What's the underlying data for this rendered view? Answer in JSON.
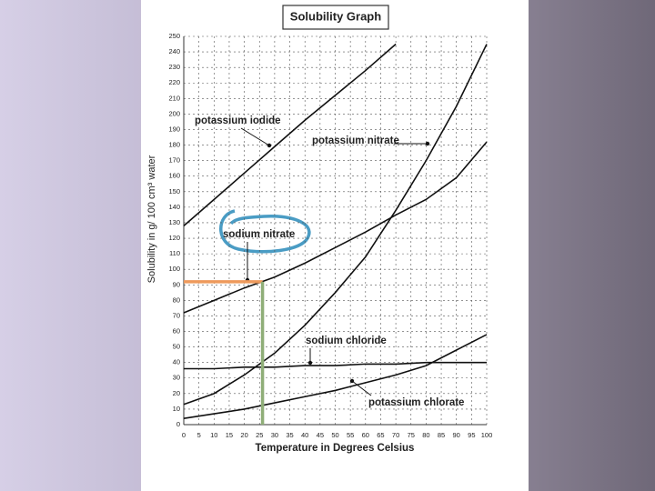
{
  "chart_data": {
    "type": "line",
    "title": "Solubility Graph",
    "x_label": "Temperature in Degrees Celsius",
    "y_label": "Solubility in g/ 100 cm³ water",
    "x": [
      0,
      10,
      20,
      30,
      40,
      50,
      60,
      70,
      80,
      90,
      100
    ],
    "series": [
      {
        "name": "potassium iodide",
        "color": "#111111",
        "values": [
          128,
          145,
          162,
          179,
          196,
          212,
          228,
          245,
          null,
          null,
          null
        ]
      },
      {
        "name": "potassium nitrate",
        "color": "#111111",
        "values": [
          13,
          20,
          32,
          46,
          64,
          85,
          108,
          138,
          170,
          205,
          245
        ]
      },
      {
        "name": "sodium nitrate",
        "color": "#111111",
        "values": [
          72,
          80,
          88,
          95,
          104,
          114,
          124,
          135,
          145,
          159,
          182
        ]
      },
      {
        "name": "sodium chloride",
        "color": "#111111",
        "values": [
          36,
          36,
          37,
          37,
          38,
          38,
          39,
          39,
          40,
          40,
          40
        ]
      },
      {
        "name": "potassium chlorate",
        "color": "#111111",
        "values": [
          4,
          7,
          10,
          14,
          18,
          22,
          27,
          32,
          38,
          48,
          58
        ]
      }
    ],
    "reading": {
      "x": 26,
      "y": 92,
      "x_color": "#8fae78",
      "y_color": "#ee9a5c"
    },
    "xlim": [
      0,
      100
    ],
    "ylim": [
      0,
      250
    ],
    "xticks": [
      0,
      5,
      10,
      15,
      20,
      25,
      30,
      35,
      40,
      45,
      50,
      55,
      60,
      65,
      70,
      75,
      80,
      85,
      90,
      95,
      100
    ],
    "yticks": [
      0,
      10,
      20,
      30,
      40,
      50,
      60,
      70,
      80,
      90,
      100,
      110,
      120,
      130,
      140,
      150,
      160,
      170,
      180,
      190,
      200,
      210,
      220,
      230,
      240,
      250
    ],
    "grid": true
  }
}
